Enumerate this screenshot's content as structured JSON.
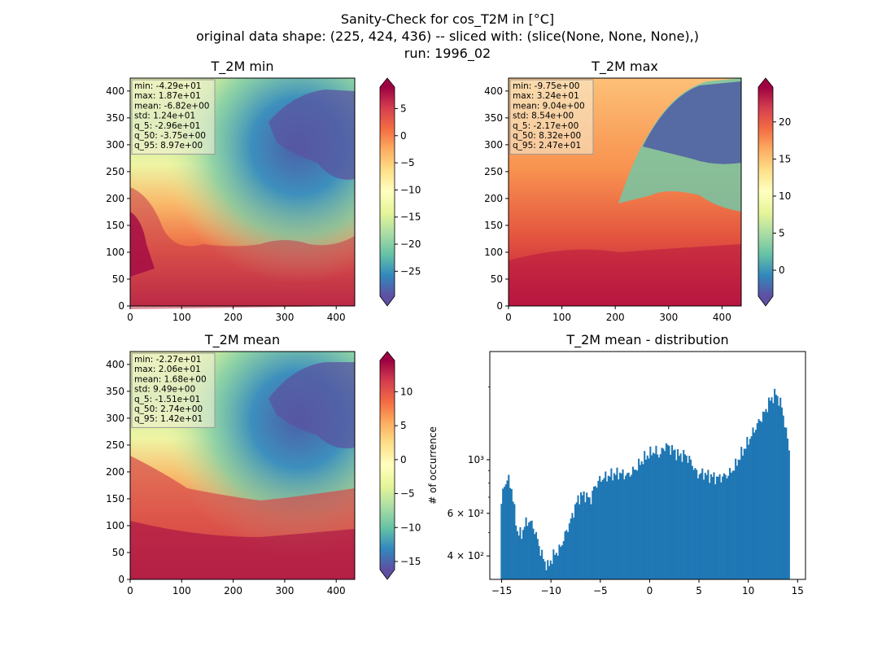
{
  "figure": {
    "title_lines": [
      "Sanity-Check for cos_T2M in [°C]",
      "original data shape: (225, 424, 436) -- sliced with: (slice(None, None, None),)",
      "run: 1996_02"
    ]
  },
  "chart_data": [
    {
      "type": "heatmap",
      "title": "T_2M min",
      "colormap": "Spectral_r",
      "xlim": [
        0,
        436
      ],
      "ylim": [
        0,
        424
      ],
      "xticks": [
        "0",
        "100",
        "200",
        "300",
        "400"
      ],
      "yticks": [
        "0",
        "50",
        "100",
        "150",
        "200",
        "250",
        "300",
        "350",
        "400"
      ],
      "stats": [
        "min: -4.29e+01",
        "max: 1.87e+01",
        "mean: -6.82e+00",
        "std: 1.24e+01",
        "q_5: -2.96e+01",
        "q_50: -3.75e+00",
        "q_95: 8.97e+00"
      ],
      "colorbar": {
        "vmin": -29.6,
        "vmax": 8.97,
        "ticks": [
          5,
          0,
          -5,
          -10,
          -15,
          -20,
          -25
        ],
        "tick_labels": [
          "5",
          "0",
          "−5",
          "−10",
          "−15",
          "−20",
          "−25"
        ]
      }
    },
    {
      "type": "heatmap",
      "title": "T_2M max",
      "colormap": "Spectral_r",
      "xlim": [
        0,
        436
      ],
      "ylim": [
        0,
        424
      ],
      "xticks": [
        "0",
        "100",
        "200",
        "300",
        "400"
      ],
      "yticks": [
        "0",
        "50",
        "100",
        "150",
        "200",
        "250",
        "300",
        "350",
        "400"
      ],
      "stats": [
        "min: -9.75e+00",
        "max: 3.24e+01",
        "mean: 9.04e+00",
        "std: 8.54e+00",
        "q_5: -2.17e+00",
        "q_50: 8.32e+00",
        "q_95: 2.47e+01"
      ],
      "colorbar": {
        "vmin": -3.5,
        "vmax": 24.7,
        "ticks": [
          20,
          15,
          10,
          5,
          0
        ],
        "tick_labels": [
          "20",
          "15",
          "10",
          "5",
          "0"
        ]
      }
    },
    {
      "type": "heatmap",
      "title": "T_2M mean",
      "colormap": "Spectral_r",
      "xlim": [
        0,
        436
      ],
      "ylim": [
        0,
        424
      ],
      "xticks": [
        "0",
        "100",
        "200",
        "300",
        "400"
      ],
      "yticks": [
        "0",
        "50",
        "100",
        "150",
        "200",
        "250",
        "300",
        "350",
        "400"
      ],
      "stats": [
        "min: -2.27e+01",
        "max: 2.06e+01",
        "mean: 1.68e+00",
        "std: 9.49e+00",
        "q_5: -1.51e+01",
        "q_50: 2.74e+00",
        "q_95: 1.42e+01"
      ],
      "colorbar": {
        "vmin": -16.2,
        "vmax": 14.6,
        "ticks": [
          10,
          5,
          0,
          -5,
          -10,
          -15
        ],
        "tick_labels": [
          "10",
          "5",
          "0",
          "−5",
          "−10",
          "−15"
        ]
      }
    },
    {
      "type": "bar",
      "title": "T_2M mean - distribution",
      "xlabel": "",
      "ylabel": "# of occurrence",
      "xlim": [
        -16.2,
        15.8
      ],
      "yscale": "log",
      "ylim": [
        320,
        2800
      ],
      "xticks": [
        -15,
        -10,
        -5,
        0,
        5,
        10,
        15
      ],
      "xtick_labels": [
        "−15",
        "−10",
        "−5",
        "0",
        "5",
        "10",
        "15"
      ],
      "yticks": [
        400,
        600,
        1000
      ],
      "ytick_labels": [
        "4 × 10²",
        "6 × 10²",
        "10³"
      ],
      "bar_color": "#1f77b4",
      "bin_start": -15.1,
      "bin_end": 14.2,
      "profile_x": [
        -15.1,
        -14.8,
        -14.4,
        -14.0,
        -13.7,
        -13.4,
        -13.0,
        -12.6,
        -12.2,
        -11.8,
        -11.4,
        -11.0,
        -10.6,
        -10.3,
        -10.0,
        -9.6,
        -9.2,
        -8.8,
        -8.4,
        -8.0,
        -7.6,
        -7.2,
        -6.6,
        -6.0,
        -5.6,
        -5.0,
        -4.4,
        -3.8,
        -3.0,
        -2.2,
        -1.4,
        -0.6,
        0.0,
        0.6,
        1.0,
        1.6,
        2.2,
        3.0,
        3.6,
        4.2,
        4.8,
        5.4,
        6.0,
        6.8,
        7.4,
        8.0,
        8.6,
        9.2,
        9.8,
        10.4,
        11.0,
        11.6,
        12.2,
        12.8,
        13.4,
        13.8,
        14.2
      ],
      "profile_y": [
        620,
        770,
        840,
        760,
        610,
        500,
        490,
        545,
        560,
        530,
        470,
        410,
        375,
        360,
        385,
        410,
        420,
        460,
        510,
        560,
        630,
        700,
        720,
        680,
        770,
        830,
        850,
        870,
        880,
        860,
        920,
        1010,
        1060,
        1090,
        1040,
        1150,
        1110,
        1040,
        1050,
        980,
        870,
        880,
        860,
        840,
        850,
        870,
        930,
        1040,
        1150,
        1280,
        1420,
        1550,
        1760,
        1880,
        1650,
        1320,
        1080
      ]
    }
  ]
}
